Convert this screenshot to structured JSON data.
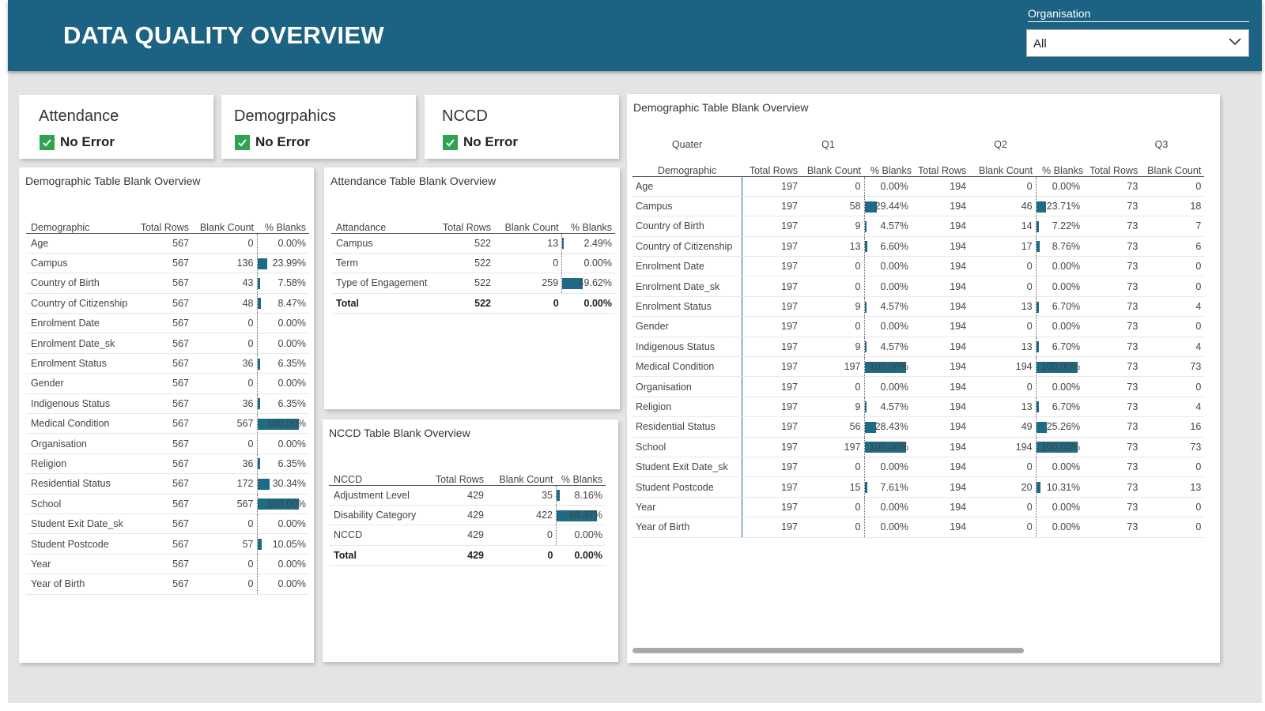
{
  "header": {
    "title": "DATA QUALITY OVERVIEW"
  },
  "slicer": {
    "label": "Organisation",
    "value": "All"
  },
  "kpis": [
    {
      "title": "Attendance",
      "status": "No Error"
    },
    {
      "title": "Demogrpahics",
      "status": "No Error"
    },
    {
      "title": "NCCD",
      "status": "No Error"
    }
  ],
  "colors": {
    "header": "#1c6282",
    "bar": "#1f6a84",
    "check": "#2fa34d"
  },
  "demo_table": {
    "title": "Demographic Table Blank Overview",
    "headers": [
      "Demographic",
      "Total Rows",
      "Blank Count",
      "% Blanks"
    ],
    "rows": [
      [
        "Age",
        "567",
        "0",
        "0.00%"
      ],
      [
        "Campus",
        "567",
        "136",
        "23.99%"
      ],
      [
        "Country of Birth",
        "567",
        "43",
        "7.58%"
      ],
      [
        "Country of Citizenship",
        "567",
        "48",
        "8.47%"
      ],
      [
        "Enrolment Date",
        "567",
        "0",
        "0.00%"
      ],
      [
        "Enrolment Date_sk",
        "567",
        "0",
        "0.00%"
      ],
      [
        "Enrolment Status",
        "567",
        "36",
        "6.35%"
      ],
      [
        "Gender",
        "567",
        "0",
        "0.00%"
      ],
      [
        "Indigenous Status",
        "567",
        "36",
        "6.35%"
      ],
      [
        "Medical Condition",
        "567",
        "567",
        "100.00%"
      ],
      [
        "Organisation",
        "567",
        "0",
        "0.00%"
      ],
      [
        "Religion",
        "567",
        "36",
        "6.35%"
      ],
      [
        "Residential Status",
        "567",
        "172",
        "30.34%"
      ],
      [
        "School",
        "567",
        "567",
        "100.00%"
      ],
      [
        "Student Exit Date_sk",
        "567",
        "0",
        "0.00%"
      ],
      [
        "Student Postcode",
        "567",
        "57",
        "10.05%"
      ],
      [
        "Year",
        "567",
        "0",
        "0.00%"
      ],
      [
        "Year of Birth",
        "567",
        "0",
        "0.00%"
      ]
    ]
  },
  "att_table": {
    "title": "Attendance Table Blank Overview",
    "headers": [
      "Attandance",
      "Total Rows",
      "Blank Count",
      "% Blanks"
    ],
    "rows": [
      [
        "Campus",
        "522",
        "13",
        "2.49%"
      ],
      [
        "Term",
        "522",
        "0",
        "0.00%"
      ],
      [
        "Type of Engagement",
        "522",
        "259",
        "49.62%"
      ]
    ],
    "total": [
      "Total",
      "522",
      "0",
      "0.00%"
    ]
  },
  "nccd_table": {
    "title": "NCCD Table Blank Overview",
    "headers": [
      "NCCD",
      "Total Rows",
      "Blank Count",
      "% Blanks"
    ],
    "rows": [
      [
        "Adjustment Level",
        "429",
        "35",
        "8.16%"
      ],
      [
        "Disability Category",
        "429",
        "422",
        "98.37%"
      ],
      [
        "NCCD",
        "429",
        "0",
        "0.00%"
      ]
    ],
    "total": [
      "Total",
      "429",
      "0",
      "0.00%"
    ]
  },
  "quarter_table": {
    "title": "Demographic Table Blank Overview",
    "quarter_label": "Quater",
    "row_label": "Demographic",
    "quarters": [
      "Q1",
      "Q2",
      "Q3"
    ],
    "subheaders": [
      "Total Rows",
      "Blank Count",
      "% Blanks"
    ],
    "rows": [
      [
        "Age",
        "197",
        "0",
        "0.00%",
        "194",
        "0",
        "0.00%",
        "73",
        "0"
      ],
      [
        "Campus",
        "197",
        "58",
        "29.44%",
        "194",
        "46",
        "23.71%",
        "73",
        "18"
      ],
      [
        "Country of Birth",
        "197",
        "9",
        "4.57%",
        "194",
        "14",
        "7.22%",
        "73",
        "7"
      ],
      [
        "Country of Citizenship",
        "197",
        "13",
        "6.60%",
        "194",
        "17",
        "8.76%",
        "73",
        "6"
      ],
      [
        "Enrolment Date",
        "197",
        "0",
        "0.00%",
        "194",
        "0",
        "0.00%",
        "73",
        "0"
      ],
      [
        "Enrolment Date_sk",
        "197",
        "0",
        "0.00%",
        "194",
        "0",
        "0.00%",
        "73",
        "0"
      ],
      [
        "Enrolment Status",
        "197",
        "9",
        "4.57%",
        "194",
        "13",
        "6.70%",
        "73",
        "4"
      ],
      [
        "Gender",
        "197",
        "0",
        "0.00%",
        "194",
        "0",
        "0.00%",
        "73",
        "0"
      ],
      [
        "Indigenous Status",
        "197",
        "9",
        "4.57%",
        "194",
        "13",
        "6.70%",
        "73",
        "4"
      ],
      [
        "Medical Condition",
        "197",
        "197",
        "100.00%",
        "194",
        "194",
        "100.00%",
        "73",
        "73"
      ],
      [
        "Organisation",
        "197",
        "0",
        "0.00%",
        "194",
        "0",
        "0.00%",
        "73",
        "0"
      ],
      [
        "Religion",
        "197",
        "9",
        "4.57%",
        "194",
        "13",
        "6.70%",
        "73",
        "4"
      ],
      [
        "Residential Status",
        "197",
        "56",
        "28.43%",
        "194",
        "49",
        "25.26%",
        "73",
        "16"
      ],
      [
        "School",
        "197",
        "197",
        "100.00%",
        "194",
        "194",
        "100.00%",
        "73",
        "73"
      ],
      [
        "Student Exit Date_sk",
        "197",
        "0",
        "0.00%",
        "194",
        "0",
        "0.00%",
        "73",
        "0"
      ],
      [
        "Student Postcode",
        "197",
        "15",
        "7.61%",
        "194",
        "20",
        "10.31%",
        "73",
        "13"
      ],
      [
        "Year",
        "197",
        "0",
        "0.00%",
        "194",
        "0",
        "0.00%",
        "73",
        "0"
      ],
      [
        "Year of Birth",
        "197",
        "0",
        "0.00%",
        "194",
        "0",
        "0.00%",
        "73",
        "0"
      ]
    ]
  }
}
